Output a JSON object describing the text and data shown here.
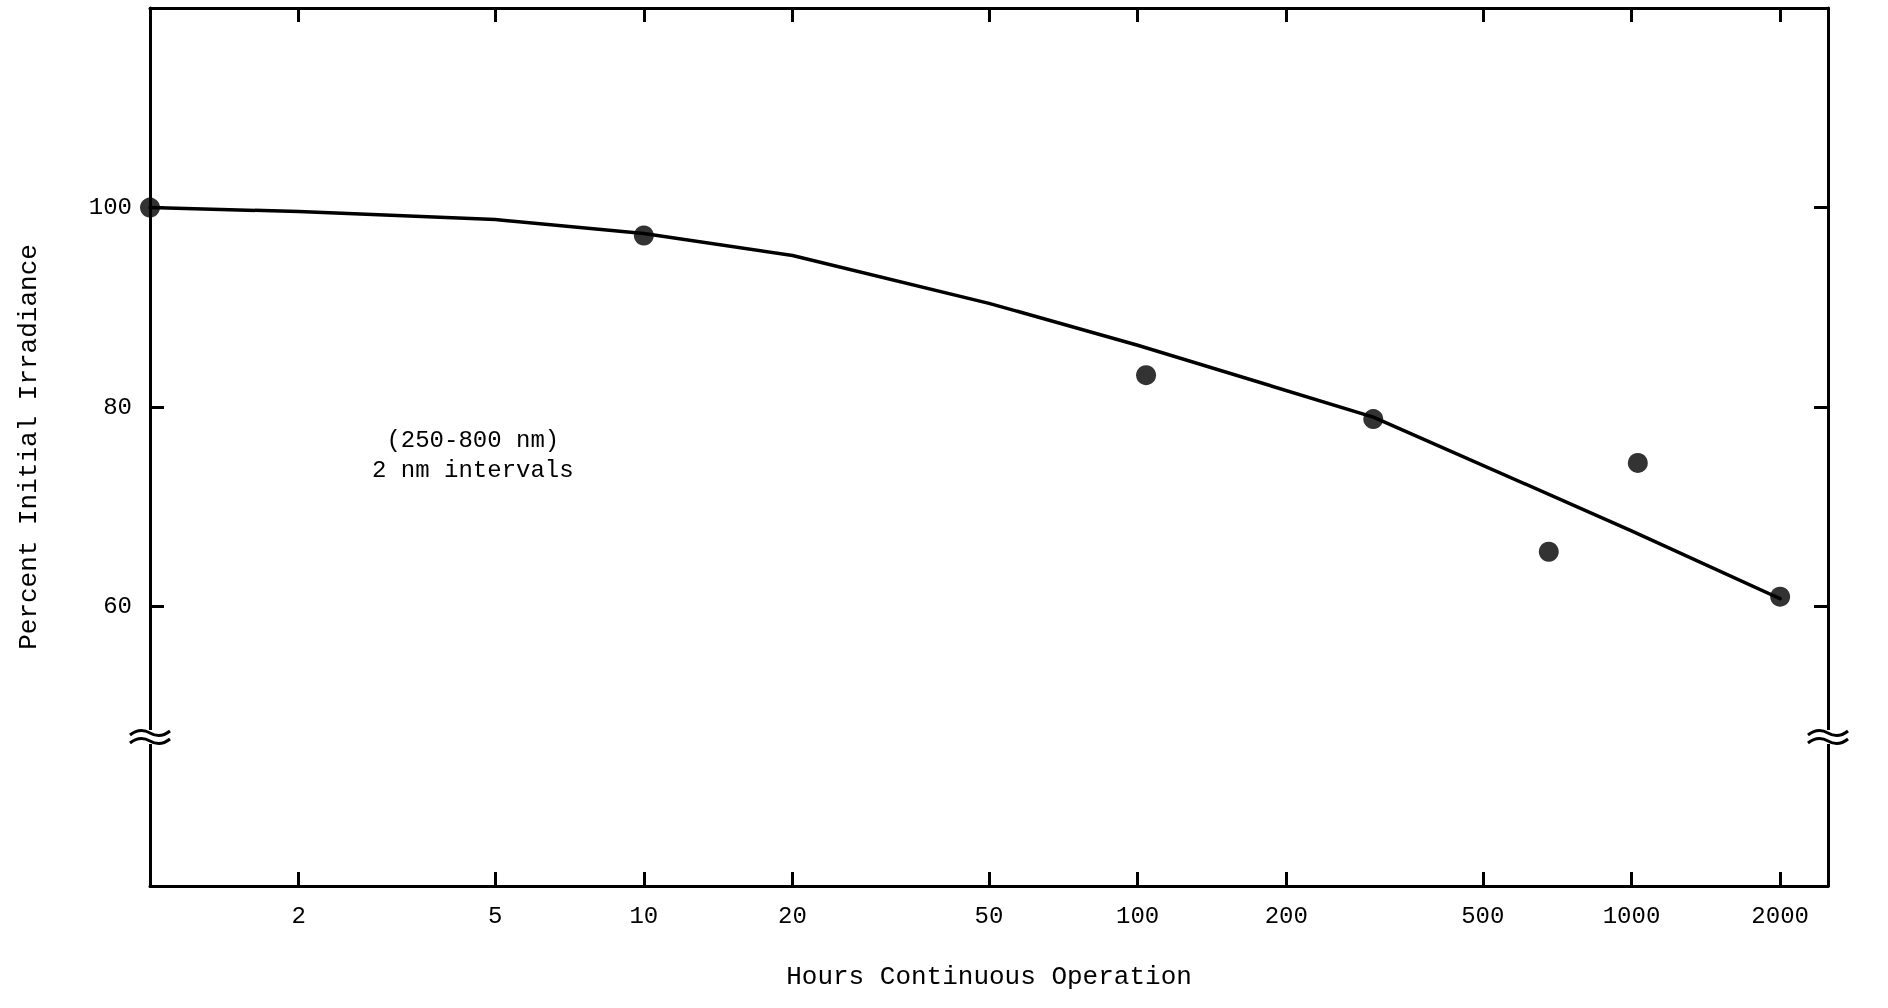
{
  "chart_data": {
    "type": "scatter",
    "xlabel": "Hours Continuous Operation",
    "ylabel": "Percent Initial Irradiance",
    "annotations": [
      "(250-800 nm)\n2 nm intervals"
    ],
    "log": "x",
    "grid": false,
    "marker": "circle",
    "xlim": [
      1,
      2500
    ],
    "xticks": [
      2,
      5,
      10,
      20,
      50,
      100,
      200,
      500,
      1000,
      2000
    ],
    "ylim": [
      32,
      120
    ],
    "yticks": [
      60,
      80,
      100
    ],
    "series": [
      {
        "color": "#000000",
        "x": [
          1,
          10,
          104,
          300,
          680,
          1030,
          2000
        ],
        "values": [
          100,
          97.2,
          83.2,
          78.8,
          65.5,
          74.4,
          61.0
        ]
      },
      {
        "type": "line",
        "color": "#000000",
        "line_style": "solid",
        "marker": "none",
        "x": [
          1,
          2,
          5,
          10,
          20,
          50,
          100,
          300,
          1000,
          2000
        ],
        "values": [
          100,
          99.6,
          98.8,
          97.4,
          95.2,
          90.4,
          86.2,
          79,
          67.6,
          60.8
        ]
      }
    ]
  }
}
